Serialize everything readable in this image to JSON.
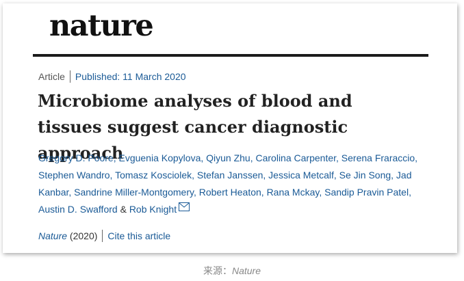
{
  "logo": "nature",
  "meta": {
    "type": "Article",
    "published": "Published: 11 March 2020"
  },
  "title": "Microbiome analyses of blood and tissues suggest cancer diagnostic approach",
  "authors": {
    "list": "Gregory D. Poore, Evguenia Kopylova, Qiyun Zhu, Carolina Carpenter, Serena Fraraccio, Stephen Wandro, Tomasz Kosciolek, Stefan Janssen, Jessica Metcalf, Se Jin Song, Jad Kanbar, Sandrine Miller-Montgomery, Robert Heaton, Rana Mckay, Sandip Pravin Patel, Austin D. Swafford",
    "amp": "&",
    "last": "Rob Knight"
  },
  "journal": {
    "name": "Nature",
    "year": "(2020)",
    "cite": "Cite this article"
  },
  "caption": {
    "label": "来源：",
    "source": "Nature"
  },
  "colors": {
    "link": "#1a5a96",
    "rule": "#1b1b1b"
  },
  "icons": {
    "mail": "mail-icon"
  }
}
